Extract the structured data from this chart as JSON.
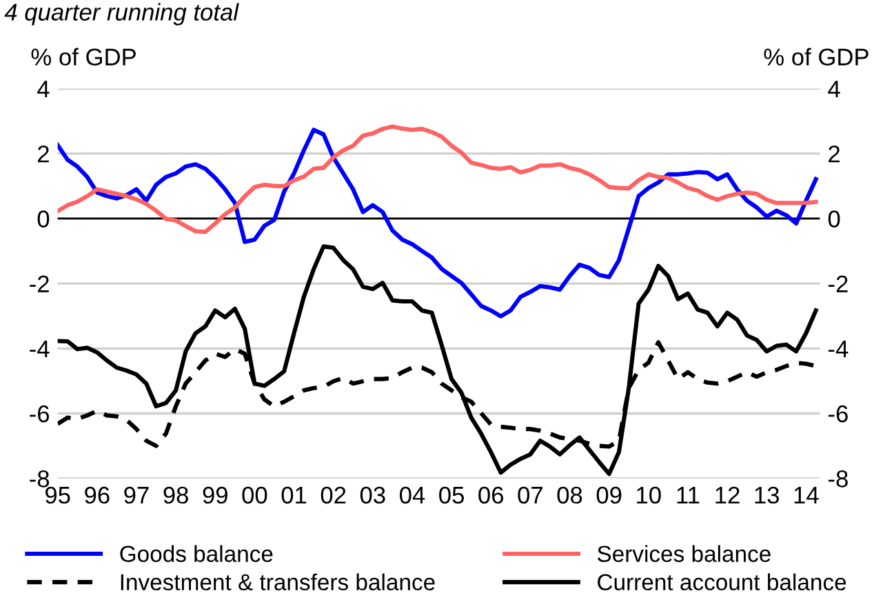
{
  "chart_data": {
    "type": "line",
    "title": "4 quarter running total",
    "ylabel": "% of GDP",
    "y2label": "% of GDP",
    "x": [
      1995.0,
      1995.25,
      1995.5,
      1995.75,
      1996.0,
      1996.25,
      1996.5,
      1996.75,
      1997.0,
      1997.25,
      1997.5,
      1997.75,
      1998.0,
      1998.25,
      1998.5,
      1998.75,
      1999.0,
      1999.25,
      1999.5,
      1999.75,
      2000.0,
      2000.25,
      2000.5,
      2000.75,
      2001.0,
      2001.25,
      2001.5,
      2001.75,
      2002.0,
      2002.25,
      2002.5,
      2002.75,
      2003.0,
      2003.25,
      2003.5,
      2003.75,
      2004.0,
      2004.25,
      2004.5,
      2004.75,
      2005.0,
      2005.25,
      2005.5,
      2005.75,
      2006.0,
      2006.25,
      2006.5,
      2006.75,
      2007.0,
      2007.25,
      2007.5,
      2007.75,
      2008.0,
      2008.25,
      2008.5,
      2008.75,
      2009.0,
      2009.25,
      2009.5,
      2009.75,
      2010.0,
      2010.25,
      2010.5,
      2010.75,
      2011.0,
      2011.25,
      2011.5,
      2011.75,
      2012.0,
      2012.25,
      2012.5,
      2012.75,
      2013.0,
      2013.25,
      2013.5,
      2013.75,
      2014.0,
      2014.25
    ],
    "series": [
      {
        "name": "Goods balance",
        "color": "#0000ff",
        "line_style": "solid",
        "values": [
          2.26,
          1.81,
          1.6,
          1.28,
          0.8,
          0.69,
          0.62,
          0.72,
          0.9,
          0.55,
          1.04,
          1.28,
          1.39,
          1.6,
          1.67,
          1.53,
          1.25,
          0.9,
          0.48,
          -0.72,
          -0.65,
          -0.22,
          -0.04,
          0.83,
          1.39,
          2.1,
          2.73,
          2.59,
          1.88,
          1.39,
          0.9,
          0.2,
          0.41,
          0.2,
          -0.37,
          -0.65,
          -0.79,
          -1.0,
          -1.2,
          -1.55,
          -1.77,
          -1.98,
          -2.33,
          -2.69,
          -2.83,
          -3.01,
          -2.83,
          -2.41,
          -2.26,
          -2.08,
          -2.12,
          -2.19,
          -1.77,
          -1.42,
          -1.52,
          -1.74,
          -1.8,
          -1.28,
          -0.3,
          0.69,
          0.94,
          1.11,
          1.36,
          1.36,
          1.39,
          1.43,
          1.41,
          1.21,
          1.36,
          0.9,
          0.55,
          0.34,
          0.06,
          0.24,
          0.1,
          -0.15,
          0.55,
          1.21
        ]
      },
      {
        "name": "Services balance",
        "color": "#ff6262",
        "line_style": "solid",
        "values": [
          0.23,
          0.41,
          0.52,
          0.69,
          0.9,
          0.83,
          0.76,
          0.69,
          0.59,
          0.45,
          0.24,
          -0.01,
          -0.06,
          -0.23,
          -0.39,
          -0.41,
          -0.15,
          0.13,
          0.34,
          0.69,
          0.97,
          1.04,
          1.0,
          1.0,
          1.18,
          1.29,
          1.53,
          1.56,
          1.88,
          2.1,
          2.24,
          2.55,
          2.62,
          2.76,
          2.83,
          2.77,
          2.73,
          2.76,
          2.66,
          2.52,
          2.24,
          2.03,
          1.72,
          1.65,
          1.56,
          1.53,
          1.58,
          1.42,
          1.5,
          1.63,
          1.63,
          1.67,
          1.56,
          1.49,
          1.36,
          1.18,
          0.97,
          0.94,
          0.93,
          1.18,
          1.36,
          1.28,
          1.25,
          1.11,
          0.94,
          0.86,
          0.69,
          0.58,
          0.69,
          0.76,
          0.8,
          0.76,
          0.58,
          0.48,
          0.48,
          0.48,
          0.48,
          0.51
        ]
      },
      {
        "name": "Investment & transfers balance",
        "color": "#000000",
        "line_style": "dashed",
        "values": [
          -6.32,
          -6.13,
          -6.17,
          -6.06,
          -5.92,
          -6.06,
          -6.09,
          -6.2,
          -6.48,
          -6.84,
          -7.0,
          -6.62,
          -5.78,
          -5.08,
          -4.73,
          -4.37,
          -4.16,
          -4.26,
          -4.02,
          -4.16,
          -5.08,
          -5.57,
          -5.78,
          -5.64,
          -5.47,
          -5.29,
          -5.22,
          -5.18,
          -5.01,
          -4.91,
          -5.08,
          -5.01,
          -4.94,
          -4.94,
          -4.91,
          -4.73,
          -4.59,
          -4.59,
          -4.73,
          -5.08,
          -5.29,
          -5.5,
          -5.64,
          -5.99,
          -6.34,
          -6.41,
          -6.44,
          -6.48,
          -6.48,
          -6.53,
          -6.62,
          -6.74,
          -6.79,
          -6.84,
          -6.93,
          -7.0,
          -7.02,
          -6.84,
          -5.22,
          -4.66,
          -4.44,
          -3.81,
          -4.37,
          -4.94,
          -4.73,
          -4.94,
          -5.05,
          -5.08,
          -5.01,
          -4.87,
          -4.73,
          -4.87,
          -4.73,
          -4.66,
          -4.54,
          -4.44,
          -4.47,
          -4.54
        ]
      },
      {
        "name": "Current account balance",
        "color": "#000000",
        "line_style": "solid",
        "values": [
          -3.77,
          -3.78,
          -4.02,
          -3.98,
          -4.12,
          -4.37,
          -4.59,
          -4.68,
          -4.8,
          -5.08,
          -5.78,
          -5.68,
          -5.29,
          -4.09,
          -3.53,
          -3.32,
          -2.83,
          -3.04,
          -2.78,
          -3.39,
          -5.08,
          -5.15,
          -4.94,
          -4.7,
          -3.53,
          -2.41,
          -1.56,
          -0.86,
          -0.9,
          -1.28,
          -1.56,
          -2.1,
          -2.17,
          -1.98,
          -2.52,
          -2.55,
          -2.55,
          -2.83,
          -2.9,
          -3.9,
          -4.94,
          -5.36,
          -6.13,
          -6.62,
          -7.19,
          -7.82,
          -7.58,
          -7.4,
          -7.26,
          -6.84,
          -7.02,
          -7.26,
          -6.98,
          -6.74,
          -7.12,
          -7.5,
          -7.86,
          -7.19,
          -5.22,
          -2.62,
          -2.19,
          -1.46,
          -1.77,
          -2.48,
          -2.31,
          -2.8,
          -2.9,
          -3.32,
          -2.9,
          -3.11,
          -3.6,
          -3.74,
          -4.09,
          -3.92,
          -3.88,
          -4.09,
          -3.53,
          -2.83
        ]
      }
    ],
    "xlim": [
      1995.0,
      2014.35
    ],
    "xticks": [
      {
        "value": 1995,
        "label": "95"
      },
      {
        "value": 1996,
        "label": "96"
      },
      {
        "value": 1997,
        "label": "97"
      },
      {
        "value": 1998,
        "label": "98"
      },
      {
        "value": 1999,
        "label": "99"
      },
      {
        "value": 2000,
        "label": "00"
      },
      {
        "value": 2001,
        "label": "01"
      },
      {
        "value": 2002,
        "label": "02"
      },
      {
        "value": 2003,
        "label": "03"
      },
      {
        "value": 2004,
        "label": "04"
      },
      {
        "value": 2005,
        "label": "05"
      },
      {
        "value": 2006,
        "label": "06"
      },
      {
        "value": 2007,
        "label": "07"
      },
      {
        "value": 2008,
        "label": "08"
      },
      {
        "value": 2009,
        "label": "09"
      },
      {
        "value": 2010,
        "label": "10"
      },
      {
        "value": 2011,
        "label": "11"
      },
      {
        "value": 2012,
        "label": "12"
      },
      {
        "value": 2013,
        "label": "13"
      },
      {
        "value": 2014,
        "label": "14"
      }
    ],
    "ylim": [
      -8,
      4
    ],
    "yticks": [
      -8,
      -6,
      -4,
      -2,
      0,
      2,
      4
    ],
    "y2lim": [
      -8,
      4
    ],
    "y2ticks": [
      -8,
      -6,
      -4,
      -2,
      0,
      2,
      4
    ],
    "ref_lines": [
      {
        "axis": "y",
        "value": 0,
        "color": "#000000"
      }
    ],
    "grid": "y",
    "legend": "bottom"
  }
}
